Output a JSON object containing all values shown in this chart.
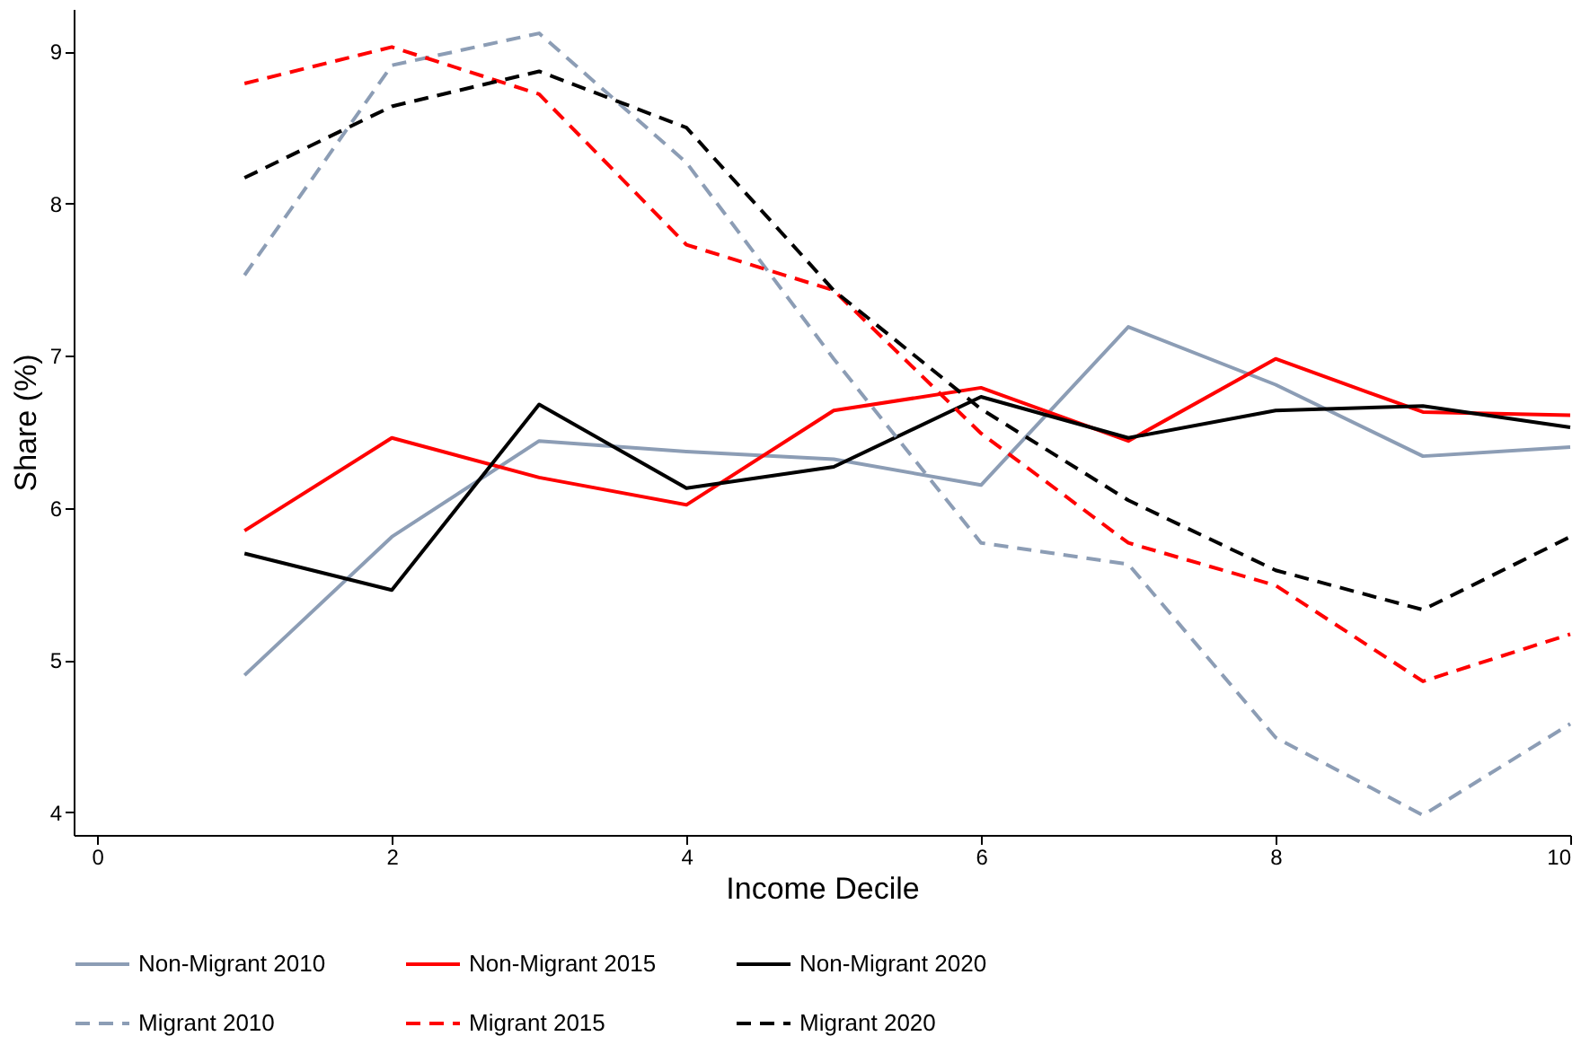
{
  "chart_data": {
    "type": "line",
    "xlabel": "Income Decile",
    "ylabel": "Share (%)",
    "x": [
      1,
      2,
      3,
      4,
      5,
      6,
      7,
      8,
      9,
      10
    ],
    "xlim": [
      -0.16,
      10
    ],
    "xticks": [
      0,
      2,
      4,
      6,
      8,
      10
    ],
    "ylim": [
      3.85,
      9.28
    ],
    "yticks": [
      4,
      5,
      6,
      7,
      8,
      9
    ],
    "grid": false,
    "legend": "bottom",
    "marker": "none",
    "series": [
      {
        "name": "Non-Migrant 2010",
        "color": "#8c9db5",
        "line_style": "solid",
        "values": [
          4.9,
          5.81,
          6.44,
          6.37,
          6.32,
          6.15,
          7.19,
          6.81,
          6.34,
          6.4
        ]
      },
      {
        "name": "Non-Migrant 2015",
        "color": "#ff0000",
        "line_style": "solid",
        "values": [
          5.85,
          6.46,
          6.2,
          6.02,
          6.64,
          6.79,
          6.44,
          6.98,
          6.63,
          6.61
        ]
      },
      {
        "name": "Non-Migrant 2020",
        "color": "#000000",
        "line_style": "solid",
        "values": [
          5.7,
          5.46,
          6.68,
          6.13,
          6.27,
          6.73,
          6.46,
          6.64,
          6.67,
          6.53
        ]
      },
      {
        "name": "Migrant 2010",
        "color": "#8c9db5",
        "line_style": "dashed",
        "values": [
          7.53,
          8.91,
          9.12,
          8.27,
          6.98,
          5.77,
          5.63,
          4.49,
          3.98,
          4.58
        ]
      },
      {
        "name": "Migrant 2015",
        "color": "#ff0000",
        "line_style": "dashed",
        "values": [
          8.79,
          9.03,
          8.72,
          7.73,
          7.43,
          6.49,
          5.77,
          5.49,
          4.86,
          5.17
        ]
      },
      {
        "name": "Migrant 2020",
        "color": "#000000",
        "line_style": "dashed",
        "values": [
          8.17,
          8.64,
          8.87,
          8.5,
          7.43,
          6.65,
          6.05,
          5.59,
          5.33,
          5.81
        ]
      }
    ]
  }
}
